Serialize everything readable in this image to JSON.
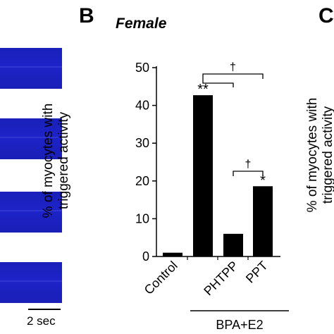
{
  "panels": {
    "b_letter": "B",
    "c_letter": "C",
    "subtitle": "Female",
    "scale_label": "2 sec"
  },
  "chart_data": {
    "type": "bar",
    "title": "Female",
    "ylabel": "% of myocytes with triggered activity",
    "ylabel_lines": [
      "% of myocytes with",
      "triggered activity"
    ],
    "ylabel_c_lines": [
      "% of myocytes with",
      "triggered activity"
    ],
    "ylim": [
      0,
      50
    ],
    "yticks": [
      0,
      10,
      20,
      30,
      40,
      50
    ],
    "categories": [
      "Control",
      "",
      "PHTPP",
      "PPT"
    ],
    "values": [
      1.0,
      42.7,
      6.0,
      18.6
    ],
    "bar_color": "#000000",
    "group_label": "BPA+E2",
    "significance": [
      {
        "bar": 1,
        "label": "**"
      },
      {
        "bar": 3,
        "label": "*"
      }
    ],
    "brackets": [
      {
        "from": 1,
        "to": 2,
        "label": "†"
      },
      {
        "from": 1,
        "to": 3,
        "label": "†"
      },
      {
        "from": 2,
        "to": 3,
        "label": "†"
      }
    ]
  }
}
